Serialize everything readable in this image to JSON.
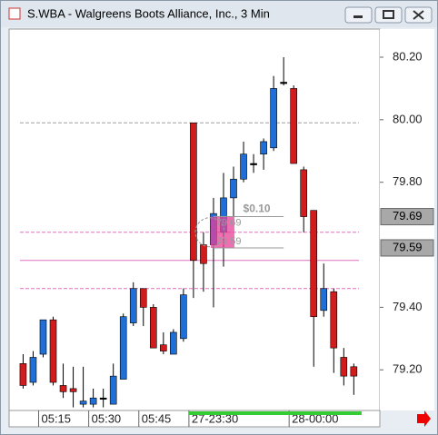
{
  "window_title": "S.WBA - Walgreens Boots Alliance, Inc., 3 Min",
  "chart_data": {
    "type": "candlestick",
    "x": [
      0,
      1,
      2,
      3,
      4,
      5,
      6,
      7,
      8,
      9,
      10,
      11,
      12,
      13,
      14,
      15,
      16,
      17,
      18,
      19,
      20,
      21,
      22,
      23,
      24,
      25,
      26,
      27,
      28,
      29,
      30,
      31,
      32,
      33
    ],
    "open": [
      79.22,
      79.16,
      79.25,
      79.36,
      79.15,
      79.14,
      79.09,
      79.09,
      79.11,
      79.09,
      79.17,
      79.35,
      79.46,
      79.4,
      79.28,
      79.25,
      79.3,
      79.99,
      79.6,
      79.6,
      79.64,
      79.75,
      79.81,
      79.86,
      79.89,
      79.91,
      80.12,
      80.1,
      79.84,
      79.71,
      79.39,
      79.45,
      79.24,
      79.21
    ],
    "high": [
      79.25,
      79.26,
      79.36,
      79.37,
      79.22,
      79.21,
      79.21,
      79.14,
      79.14,
      79.22,
      79.38,
      79.48,
      79.46,
      79.41,
      79.32,
      79.33,
      79.46,
      79.99,
      79.64,
      79.75,
      79.83,
      79.85,
      79.93,
      79.89,
      79.94,
      80.14,
      80.2,
      80.11,
      79.85,
      79.71,
      79.54,
      79.46,
      79.27,
      79.22
    ],
    "low": [
      79.14,
      79.15,
      79.24,
      79.15,
      79.11,
      79.08,
      79.08,
      79.08,
      79.08,
      79.09,
      79.17,
      79.34,
      79.34,
      79.27,
      79.25,
      79.25,
      79.29,
      79.43,
      79.45,
      79.4,
      79.53,
      79.69,
      79.8,
      79.83,
      79.84,
      79.9,
      80.11,
      79.86,
      79.64,
      79.21,
      79.37,
      79.19,
      79.15,
      79.12
    ],
    "close": [
      79.15,
      79.24,
      79.36,
      79.16,
      79.13,
      79.13,
      79.1,
      79.11,
      79.11,
      79.18,
      79.37,
      79.46,
      79.4,
      79.27,
      79.26,
      79.32,
      79.44,
      79.55,
      79.54,
      79.7,
      79.75,
      79.81,
      79.89,
      79.86,
      79.93,
      80.1,
      80.12,
      79.86,
      79.69,
      79.37,
      79.46,
      79.27,
      79.18,
      79.18
    ],
    "up_color": "#1f6fd6",
    "down_color": "#d01c1c",
    "doji_color": "#000000",
    "xlim": [
      -1.4,
      35.6
    ],
    "xticks": [
      {
        "value": 2,
        "label": "05:15"
      },
      {
        "value": 7,
        "label": "05:30"
      },
      {
        "value": 12,
        "label": "05:45"
      },
      {
        "value": 17,
        "label": "27-23:30"
      },
      {
        "value": 27,
        "label": "28-00:00"
      }
    ],
    "ylim": [
      79.07,
      80.29
    ],
    "yticks": [
      {
        "value": 80.2,
        "label": "80.20"
      },
      {
        "value": 80,
        "label": "80.00"
      },
      {
        "value": 79.8,
        "label": "79.80"
      },
      {
        "value": 79.4,
        "label": "79.40"
      },
      {
        "value": 79.2,
        "label": "79.20"
      }
    ],
    "hlines": [
      {
        "value": 79.99,
        "color": "#a0a0a0",
        "dashed": true
      },
      {
        "value": 79.64,
        "color": "#e070c0",
        "dashed": true
      },
      {
        "value": 79.55,
        "color": "#e070c0",
        "dashed": false
      },
      {
        "value": 79.46,
        "color": "#e070c0",
        "dashed": true
      }
    ],
    "price_labels": [
      79.69,
      79.59
    ],
    "measure": {
      "label": "$0.10",
      "from": 79.69,
      "to": 79.59,
      "x_from": 19,
      "x_to": 26
    }
  }
}
